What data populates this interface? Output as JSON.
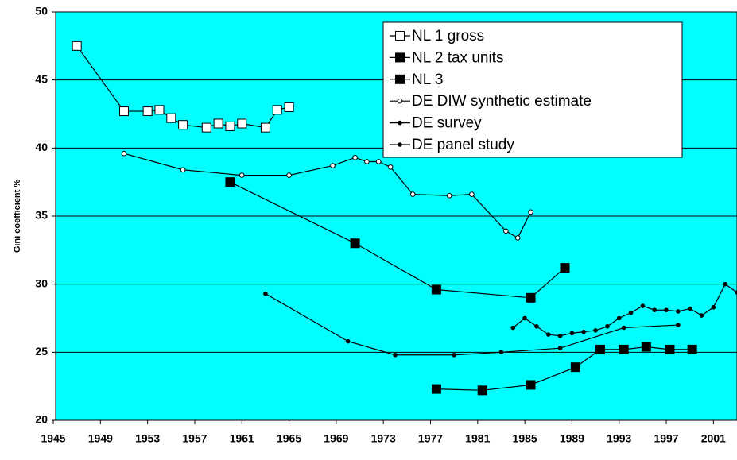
{
  "chart_data": {
    "type": "line",
    "y_label": "Gini coefficient %",
    "xlim": [
      1945.2,
      2003
    ],
    "xticks": [
      1945,
      1949,
      1953,
      1957,
      1961,
      1965,
      1969,
      1973,
      1977,
      1981,
      1985,
      1989,
      1993,
      1997,
      2001
    ],
    "ylim": [
      20,
      50
    ],
    "yticks": [
      20,
      25,
      30,
      35,
      40,
      45,
      50
    ],
    "grid": true,
    "background": "#00ffff",
    "legend": "top-right",
    "series": [
      {
        "name": "NL 1 gross",
        "color": "#000000",
        "marker": "open-square",
        "x": [
          1947,
          1951,
          1953,
          1954,
          1955,
          1956,
          1958,
          1959,
          1960,
          1961,
          1963,
          1964,
          1965
        ],
        "values": [
          47.5,
          42.7,
          42.7,
          42.8,
          42.2,
          41.7,
          41.5,
          41.8,
          41.6,
          41.8,
          41.5,
          42.8,
          43.0
        ]
      },
      {
        "name": "NL 2 tax units",
        "color": "#000000",
        "marker": "filled-square",
        "x": [
          1960,
          1970.6,
          1977.5,
          1985.5,
          1988.4
        ],
        "values": [
          37.5,
          33.0,
          29.6,
          29.0,
          31.2
        ]
      },
      {
        "name": "NL 3",
        "color": "#000000",
        "marker": "filled-square",
        "x": [
          1977.5,
          1981.4,
          1985.5,
          1989.3,
          1991.4,
          1993.4,
          1995.3,
          1997.3,
          1999.2
        ],
        "values": [
          22.3,
          22.2,
          22.6,
          23.9,
          25.2,
          25.2,
          25.4,
          25.2,
          25.2
        ]
      },
      {
        "name": "DE DIW synthetic estimate",
        "color": "#000000",
        "marker": "open-circle",
        "x": [
          1951,
          1956,
          1961,
          1965,
          1968.7,
          1970.6,
          1971.6,
          1972.6,
          1973.6,
          1975.5,
          1978.6,
          1980.5,
          1983.4,
          1984.4,
          1985.5
        ],
        "values": [
          39.6,
          38.4,
          38.0,
          38.0,
          38.7,
          39.3,
          39.0,
          39.0,
          38.6,
          36.6,
          36.5,
          36.6,
          33.9,
          33.4,
          35.3
        ]
      },
      {
        "name": "DE survey",
        "color": "#000000",
        "marker": "dot",
        "x": [
          1984,
          1985,
          1986,
          1987,
          1988,
          1989,
          1990,
          1991,
          1992,
          1993,
          1994,
          1995,
          1996,
          1997,
          1998,
          1999,
          2000,
          2001,
          2002,
          2003
        ],
        "values": [
          26.8,
          27.5,
          26.9,
          26.3,
          26.2,
          26.4,
          26.5,
          26.6,
          26.9,
          27.5,
          27.9,
          28.4,
          28.1,
          28.1,
          28.0,
          28.2,
          27.7,
          28.3,
          30.0,
          29.4
        ]
      },
      {
        "name": "DE panel study",
        "color": "#000000",
        "marker": "dot",
        "x": [
          1963,
          1970,
          1974,
          1979,
          1983,
          1988,
          1993.4,
          1998
        ],
        "values": [
          29.3,
          25.8,
          24.8,
          24.8,
          25.0,
          25.3,
          26.8,
          27.0
        ]
      }
    ]
  }
}
